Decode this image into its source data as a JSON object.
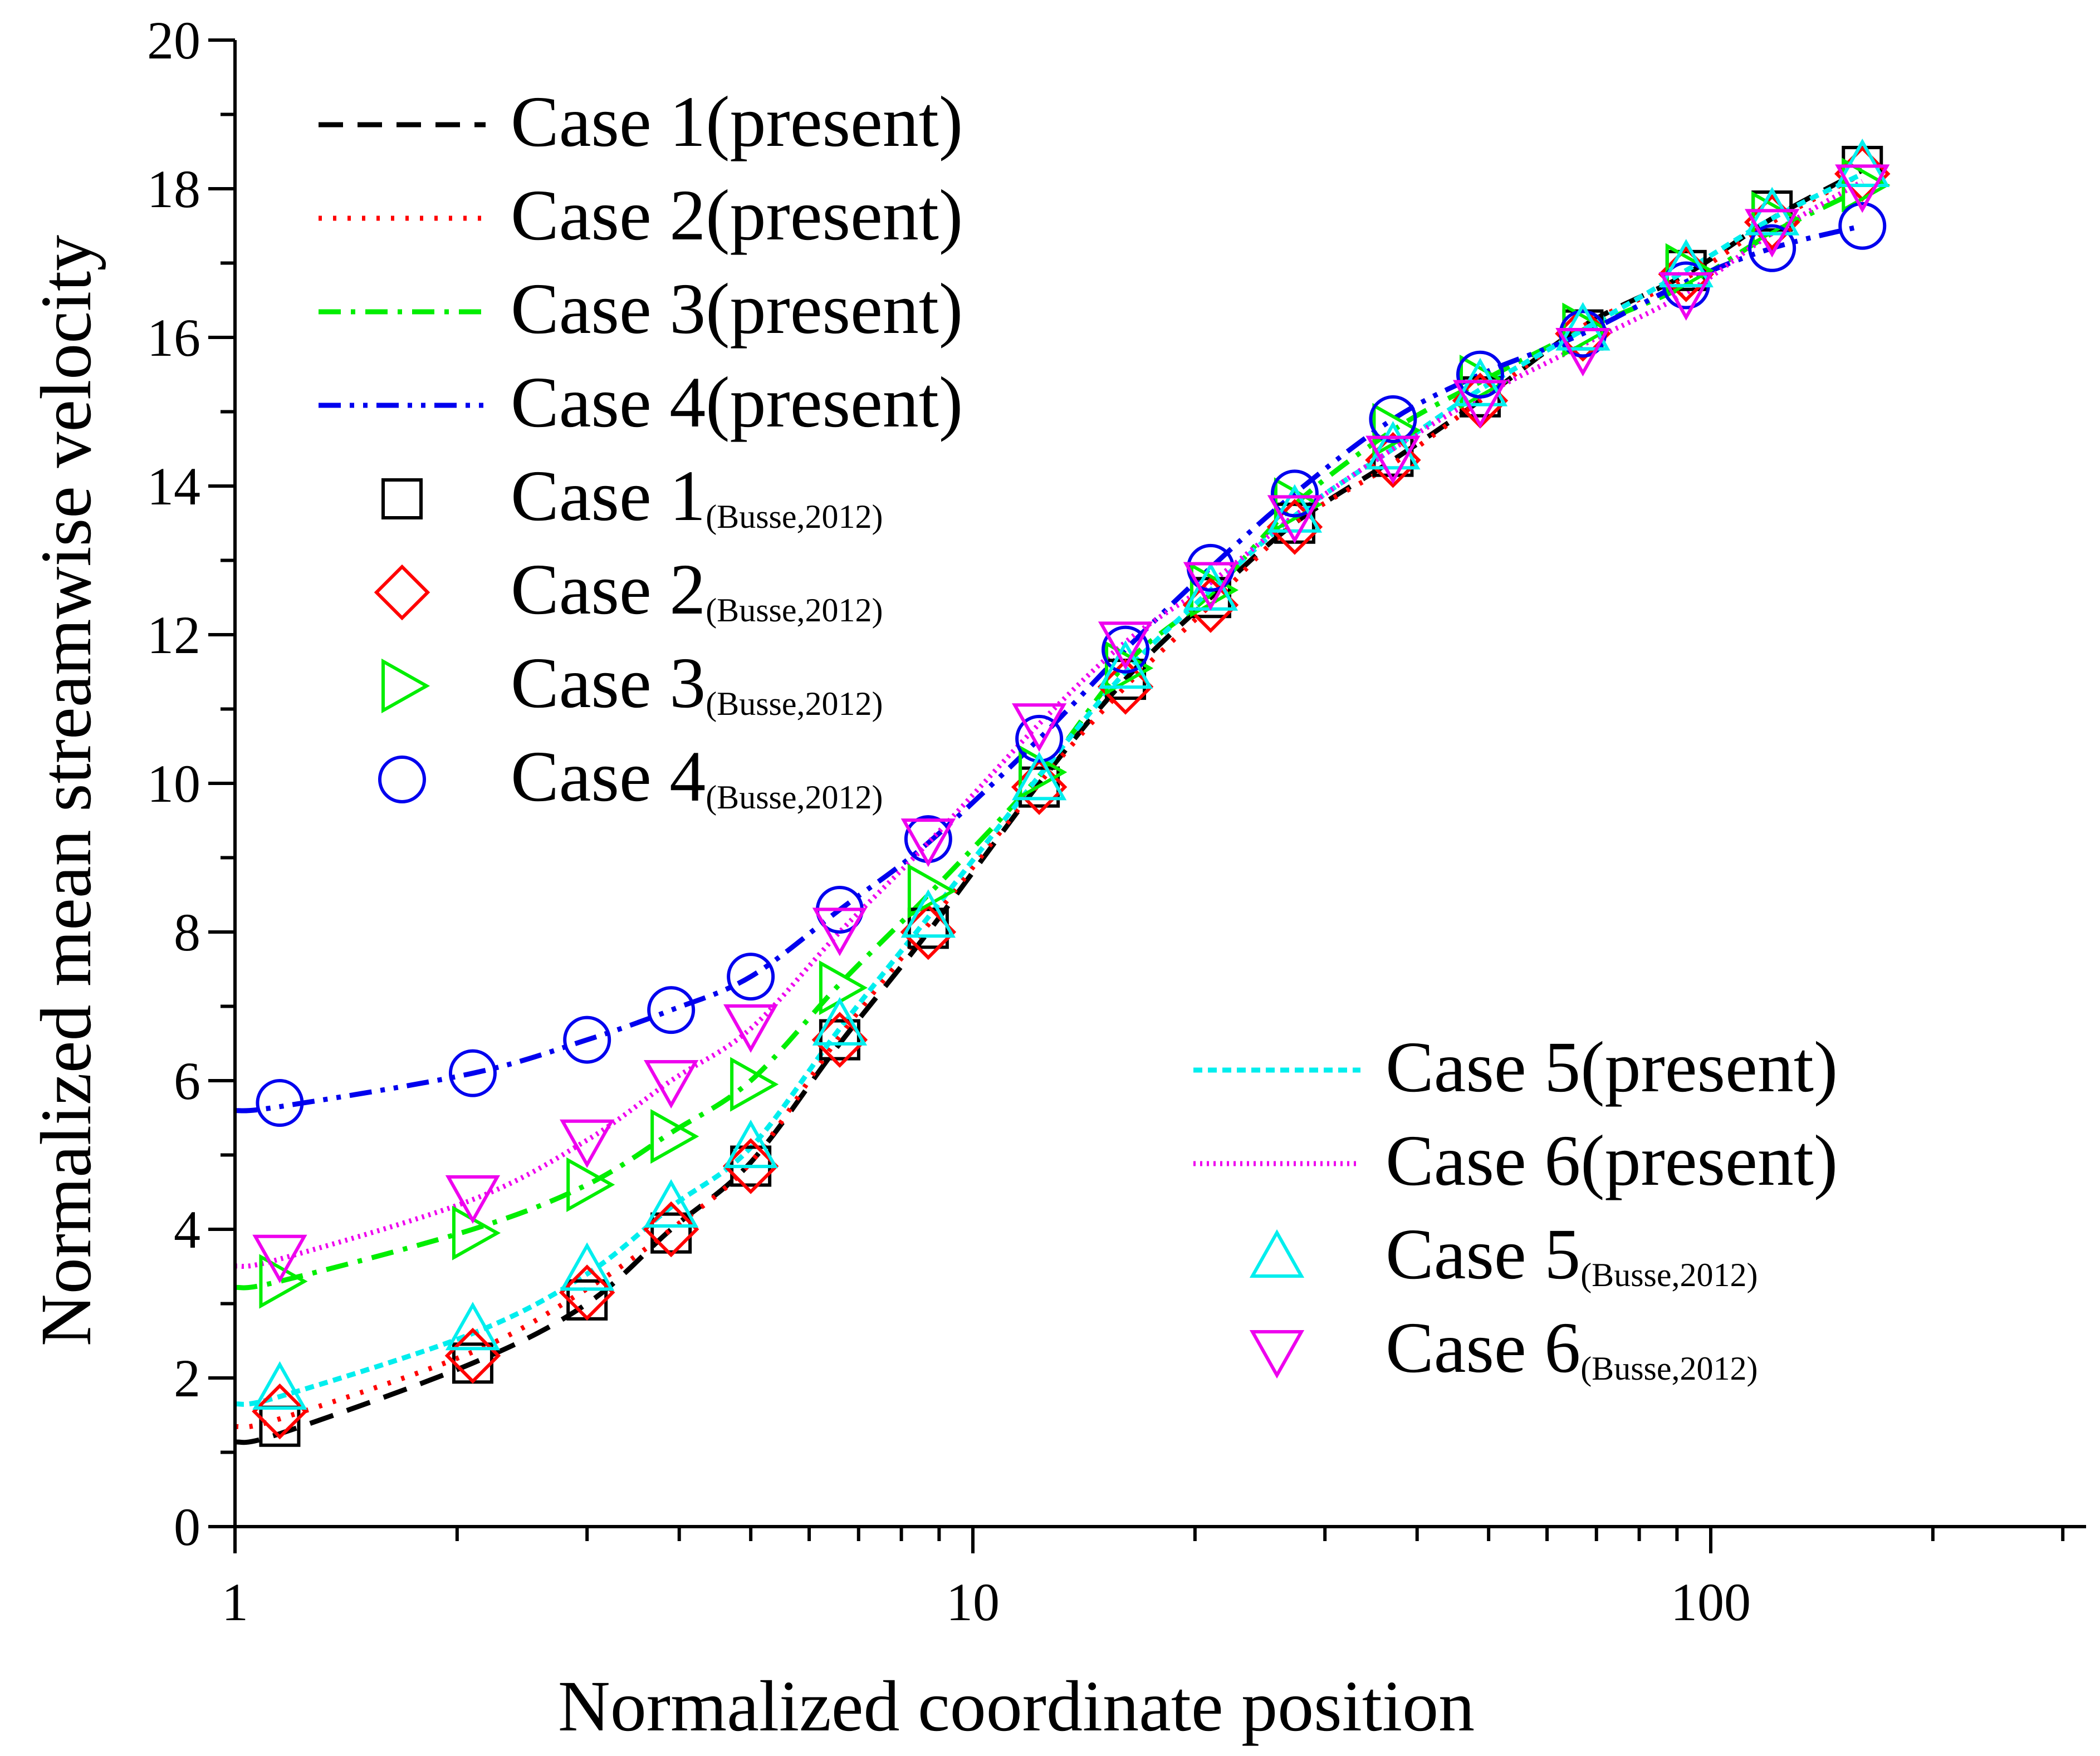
{
  "chart_data": {
    "type": "line",
    "title": "",
    "xlabel": "Normalized coordinate position",
    "ylabel": "Normalized mean streamwise velocity",
    "xscale": "log",
    "xlim": [
      1,
      300
    ],
    "ylim": [
      0,
      20
    ],
    "x_ticks": [
      {
        "value": 1,
        "label": "1"
      },
      {
        "value": 10,
        "label": "10"
      },
      {
        "value": 100,
        "label": "100"
      }
    ],
    "y_ticks": [
      {
        "value": 0,
        "label": "0"
      },
      {
        "value": 2,
        "label": "2"
      },
      {
        "value": 4,
        "label": "4"
      },
      {
        "value": 6,
        "label": "6"
      },
      {
        "value": 8,
        "label": "8"
      },
      {
        "value": 10,
        "label": "10"
      },
      {
        "value": 12,
        "label": "12"
      },
      {
        "value": 14,
        "label": "14"
      },
      {
        "value": 16,
        "label": "16"
      },
      {
        "value": 18,
        "label": "18"
      },
      {
        "value": 20,
        "label": "20"
      }
    ],
    "x": [
      1.15,
      2.1,
      3.0,
      3.9,
      5.0,
      6.6,
      8.7,
      12.3,
      16.1,
      21.0,
      27.3,
      37.1,
      48.7,
      67.1,
      92.6,
      121.1,
      160.5
    ],
    "lines": [
      {
        "name": "Case 1",
        "suffix": "(present)",
        "color": "#000000",
        "dash": "44 26",
        "values": [
          1.25,
          2.2,
          3.0,
          4.0,
          4.9,
          6.5,
          8.0,
          10.0,
          11.4,
          12.5,
          13.5,
          14.35,
          15.15,
          16.15,
          16.85,
          17.6,
          18.25
        ]
      },
      {
        "name": "Case 2",
        "suffix": "(present)",
        "color": "#ff0000",
        "dash": "6 20",
        "values": [
          1.45,
          2.35,
          3.2,
          4.0,
          4.9,
          6.6,
          8.1,
          10.0,
          11.3,
          12.4,
          13.5,
          14.3,
          15.15,
          16.15,
          16.8,
          17.55,
          18.2
        ]
      },
      {
        "name": "Case 3",
        "suffix": "(present)",
        "color": "#00ee00",
        "dash": "40 18 8 18",
        "values": [
          3.3,
          4.0,
          4.6,
          5.3,
          6.0,
          7.3,
          8.5,
          10.1,
          11.6,
          12.55,
          13.75,
          14.75,
          15.4,
          16.1,
          16.7,
          17.4,
          18.0
        ]
      },
      {
        "name": "Case 4",
        "suffix": "(present)",
        "color": "#0000ee",
        "dash": "40 16 8 16 8 16",
        "values": [
          5.65,
          6.1,
          6.55,
          6.95,
          7.4,
          8.3,
          9.2,
          10.6,
          11.8,
          12.9,
          13.9,
          14.9,
          15.5,
          16.05,
          16.75,
          17.2,
          17.5
        ]
      },
      {
        "name": "Case 5",
        "suffix": "(present)",
        "color": "#00eeee",
        "dash": "16 10",
        "values": [
          1.75,
          2.6,
          3.4,
          4.3,
          5.1,
          6.7,
          8.2,
          10.1,
          11.5,
          12.6,
          13.6,
          14.5,
          15.3,
          16.1,
          16.9,
          17.6,
          18.2
        ]
      },
      {
        "name": "Case 6",
        "suffix": "(present)",
        "color": "#ee00ee",
        "dash": "4 8",
        "values": [
          3.6,
          4.4,
          5.2,
          6.0,
          6.7,
          8.0,
          9.2,
          10.8,
          11.9,
          12.7,
          13.6,
          14.5,
          15.2,
          15.9,
          16.6,
          17.4,
          18.1
        ]
      }
    ],
    "markers": [
      {
        "name": "Case 1",
        "suffix": "(Busse,2012)",
        "color": "#000000",
        "shape": "square",
        "values": [
          1.35,
          2.2,
          3.05,
          3.95,
          4.85,
          6.55,
          8.05,
          9.95,
          11.4,
          12.5,
          13.5,
          14.4,
          15.2,
          16.1,
          16.9,
          17.7,
          18.3
        ]
      },
      {
        "name": "Case 2",
        "suffix": "(Busse,2012)",
        "color": "#ff0000",
        "shape": "diamond",
        "values": [
          1.55,
          2.3,
          3.15,
          4.0,
          4.85,
          6.55,
          8.0,
          9.95,
          11.3,
          12.4,
          13.45,
          14.35,
          15.15,
          16.05,
          16.85,
          17.55,
          18.2
        ]
      },
      {
        "name": "Case 3",
        "suffix": "(Busse,2012)",
        "color": "#00ee00",
        "shape": "triangle-right",
        "values": [
          3.3,
          3.95,
          4.6,
          5.25,
          5.95,
          7.25,
          8.55,
          10.15,
          11.55,
          12.6,
          13.75,
          14.75,
          15.4,
          16.1,
          16.9,
          17.6,
          18.05
        ]
      },
      {
        "name": "Case 4",
        "suffix": "(Busse,2012)",
        "color": "#0000ee",
        "shape": "circle",
        "values": [
          5.7,
          6.1,
          6.55,
          6.95,
          7.4,
          8.3,
          9.25,
          10.6,
          11.8,
          12.9,
          13.9,
          14.9,
          15.5,
          16.05,
          16.7,
          17.2,
          17.5
        ]
      },
      {
        "name": "Case 5",
        "suffix": "(Busse,2012)",
        "color": "#00eeee",
        "shape": "triangle-up",
        "values": [
          1.85,
          2.65,
          3.45,
          4.3,
          5.1,
          6.75,
          8.2,
          10.05,
          11.55,
          12.6,
          13.65,
          14.5,
          15.35,
          16.1,
          16.95,
          17.65,
          18.3
        ]
      },
      {
        "name": "Case 6",
        "suffix": "(Busse,2012)",
        "color": "#ee00ee",
        "shape": "triangle-down",
        "values": [
          3.65,
          4.45,
          5.2,
          6.0,
          6.75,
          8.05,
          9.25,
          10.8,
          11.9,
          12.7,
          13.6,
          14.4,
          15.15,
          15.85,
          16.6,
          17.45,
          18.05
        ]
      }
    ],
    "legend_placement": [
      "top-left",
      "bottom-right"
    ]
  }
}
